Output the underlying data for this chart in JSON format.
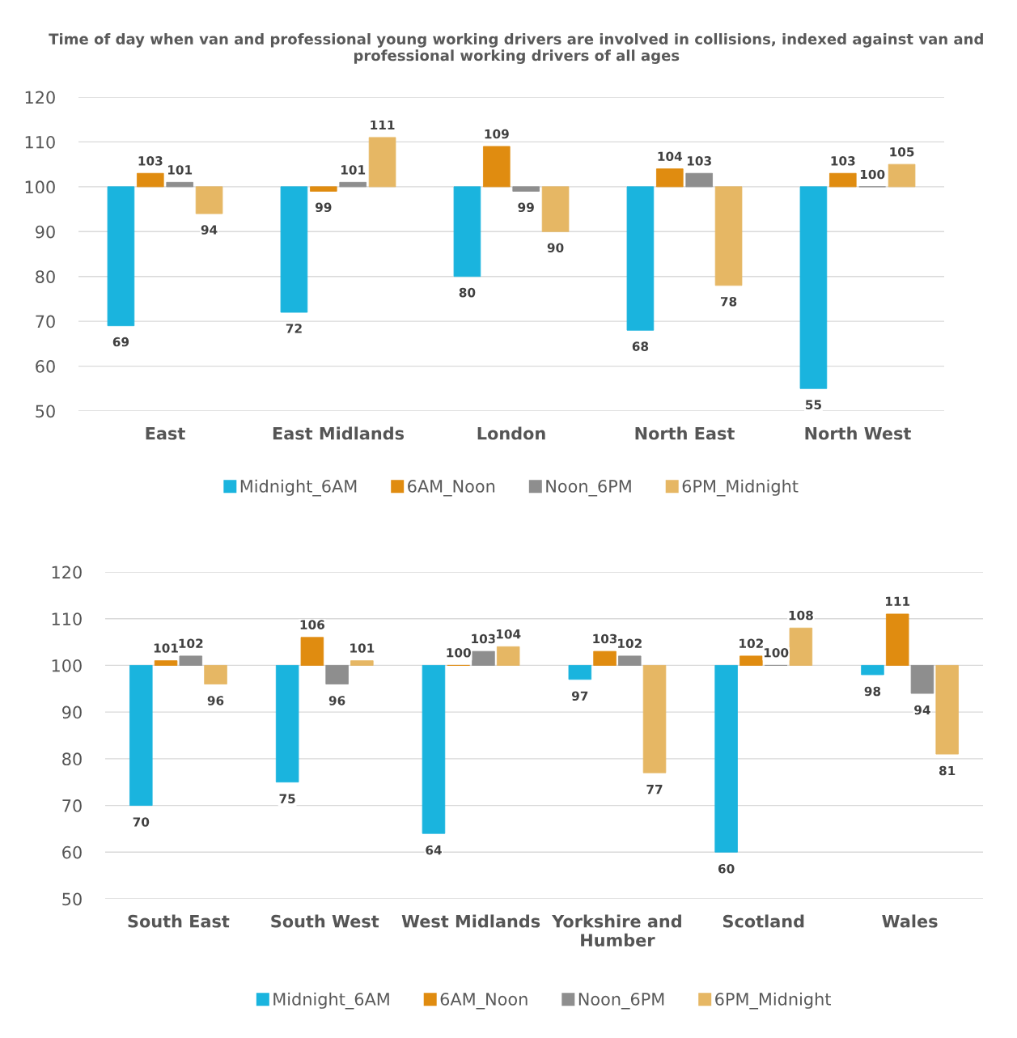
{
  "chart_data": [
    {
      "type": "bar",
      "title": "Time of day when van and professional young working drivers are involved in collisions, indexed against van and professional working drivers of all ages",
      "categories": [
        "East",
        "East Midlands",
        "London",
        "North East",
        "North West"
      ],
      "series": [
        {
          "name": "Midnight_6AM",
          "color": "#1ab4de",
          "base": [
            100,
            100,
            100,
            100,
            100
          ],
          "values": [
            -31,
            -28,
            -20,
            -32,
            -45
          ],
          "value_labels": [
            "69",
            "72",
            "80",
            "68",
            "55"
          ]
        },
        {
          "name": "6AM_Noon",
          "color": "#e08c10",
          "base": [
            100,
            100,
            100,
            100,
            100
          ],
          "values": [
            3,
            -1,
            9,
            4,
            3
          ],
          "value_labels": [
            "103",
            "99",
            "109",
            "104",
            "103"
          ]
        },
        {
          "name": "Noon_6PM",
          "color": "#8e8e8e",
          "base": [
            100,
            100,
            100,
            100,
            100
          ],
          "values": [
            1,
            1,
            -1,
            3,
            0
          ],
          "value_labels": [
            "101",
            "101",
            "99",
            "103",
            "100"
          ]
        },
        {
          "name": "6PM_Midnight",
          "color": "#e6b764",
          "base": [
            100,
            100,
            100,
            100,
            100
          ],
          "values": [
            -6,
            11,
            -10,
            -22,
            5
          ],
          "value_labels": [
            "94",
            "111",
            "90",
            "78",
            "105"
          ]
        }
      ],
      "ylim": [
        50,
        120
      ],
      "yticks": [
        50,
        60,
        70,
        80,
        90,
        100,
        110,
        120
      ],
      "grid": "y",
      "legend": "bottom"
    },
    {
      "type": "bar",
      "categories": [
        "South East",
        "South West",
        "West Midlands",
        "Yorkshire and\nHumber",
        "Scotland",
        "Wales"
      ],
      "series": [
        {
          "name": "Midnight_6AM",
          "color": "#1ab4de",
          "base": [
            100,
            100,
            100,
            100,
            100,
            100
          ],
          "values": [
            -30,
            -25,
            -36,
            -3,
            -40,
            -2
          ],
          "value_labels": [
            "70",
            "75",
            "64",
            "97",
            "60",
            "98"
          ]
        },
        {
          "name": "6AM_Noon",
          "color": "#e08c10",
          "base": [
            100,
            100,
            100,
            100,
            100,
            100
          ],
          "values": [
            1,
            6,
            0,
            3,
            2,
            11
          ],
          "value_labels": [
            "101",
            "106",
            "100",
            "103",
            "102",
            "111"
          ]
        },
        {
          "name": "Noon_6PM",
          "color": "#8e8e8e",
          "base": [
            100,
            100,
            100,
            100,
            100,
            100
          ],
          "values": [
            2,
            -4,
            3,
            2,
            0,
            -6
          ],
          "value_labels": [
            "102",
            "96",
            "103",
            "102",
            "100",
            "94"
          ]
        },
        {
          "name": "6PM_Midnight",
          "color": "#e6b764",
          "base": [
            100,
            100,
            100,
            100,
            100,
            100
          ],
          "values": [
            -4,
            1,
            4,
            -23,
            8,
            -19
          ],
          "value_labels": [
            "96",
            "101",
            "104",
            "77",
            "108",
            "81"
          ]
        }
      ],
      "ylim": [
        50,
        120
      ],
      "yticks": [
        50,
        60,
        70,
        80,
        90,
        100,
        110,
        120
      ],
      "grid": "y",
      "legend": "bottom"
    }
  ]
}
